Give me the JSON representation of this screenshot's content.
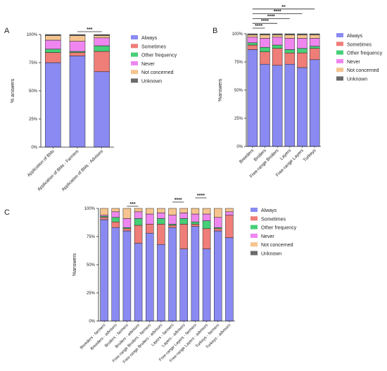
{
  "colors": {
    "Always": "#8a8af2",
    "Sometimes": "#ef7d78",
    "Other frequency": "#46cf77",
    "Never": "#ef86ef",
    "Not concerned": "#f5c48f",
    "Unknown": "#6b6b6b"
  },
  "chart_data": [
    {
      "panel": "A",
      "type": "bar",
      "stacked": true,
      "ylabel": "% answers",
      "yticks": [
        "0%",
        "25%",
        "50%",
        "75%",
        "100%"
      ],
      "ylim": [
        0,
        100
      ],
      "categories": [
        "Application of BMs",
        "Application of BMs - Farmers",
        "Application of BMs - Advisors"
      ],
      "series": [
        {
          "name": "Always",
          "values": [
            75,
            81,
            67
          ]
        },
        {
          "name": "Sometimes",
          "values": [
            9,
            3,
            18
          ]
        },
        {
          "name": "Other frequency",
          "values": [
            3,
            1,
            5
          ]
        },
        {
          "name": "Never",
          "values": [
            8,
            9,
            7
          ]
        },
        {
          "name": "Not concerned",
          "values": [
            4,
            5,
            2
          ]
        },
        {
          "name": "Unknown",
          "values": [
            1,
            1,
            1
          ]
        }
      ],
      "legend": [
        "Always",
        "Sometimes",
        "Other frequency",
        "Never",
        "Not concerned",
        "Unknown"
      ],
      "significance": [
        {
          "from": 1,
          "to": 2,
          "label": "***"
        }
      ]
    },
    {
      "panel": "B",
      "type": "bar",
      "stacked": true,
      "ylabel": "%answers",
      "yticks": [
        "0%",
        "25%",
        "50%",
        "75%",
        "100%"
      ],
      "ylim": [
        0,
        100
      ],
      "categories": [
        "Breeders",
        "Broilers",
        "Free-range Broilers",
        "Layers",
        "Free-range Layers",
        "Turkeys"
      ],
      "series": [
        {
          "name": "Always",
          "values": [
            86,
            73,
            72,
            73,
            70,
            77
          ]
        },
        {
          "name": "Sometimes",
          "values": [
            4,
            11,
            15,
            10,
            13,
            10
          ]
        },
        {
          "name": "Other frequency",
          "values": [
            2,
            4,
            3,
            3,
            4,
            2
          ]
        },
        {
          "name": "Never",
          "values": [
            5,
            8,
            7,
            10,
            9,
            7
          ]
        },
        {
          "name": "Not concerned",
          "values": [
            2,
            3,
            2,
            3,
            3,
            3
          ]
        },
        {
          "name": "Unknown",
          "values": [
            1,
            1,
            1,
            1,
            1,
            1
          ]
        }
      ],
      "legend": [
        "Always",
        "Sometimes",
        "Other frequency",
        "Never",
        "Not concerned",
        "Unknown"
      ],
      "significance": [
        {
          "from": 0,
          "to": 1,
          "label": "****"
        },
        {
          "from": 0,
          "to": 2,
          "label": "****"
        },
        {
          "from": 0,
          "to": 3,
          "label": "****"
        },
        {
          "from": 0,
          "to": 4,
          "label": "****"
        },
        {
          "from": 0,
          "to": 5,
          "label": "**"
        }
      ]
    },
    {
      "panel": "C",
      "type": "bar",
      "stacked": true,
      "ylabel": "%answers",
      "yticks": [
        "0%",
        "25%",
        "50%",
        "75%",
        "100%"
      ],
      "ylim": [
        0,
        100
      ],
      "categories": [
        "Breeders - farmers",
        "Breeders - advisors",
        "Broilers - farmers",
        "Broilers - advisors",
        "Free-range Broilers - farmers",
        "Free-range Broilers - advisors",
        "Layers - farmers",
        "Layers - advisors",
        "Free-range Layers - farmers",
        "Free-range Layers - advisors",
        "Turkeys - farmers",
        "Turkeys - advisors"
      ],
      "series": [
        {
          "name": "Always",
          "values": [
            90,
            83,
            80,
            69,
            78,
            68,
            83,
            64,
            84,
            64,
            80,
            74
          ]
        },
        {
          "name": "Sometimes",
          "values": [
            2,
            5,
            2,
            16,
            8,
            18,
            2,
            22,
            2,
            18,
            2,
            20
          ]
        },
        {
          "name": "Other frequency",
          "values": [
            1,
            4,
            1,
            6,
            0,
            5,
            1,
            5,
            2,
            7,
            1,
            0
          ]
        },
        {
          "name": "Never",
          "values": [
            1,
            5,
            8,
            6,
            9,
            5,
            8,
            5,
            7,
            6,
            9,
            3
          ]
        },
        {
          "name": "Not concerned",
          "values": [
            6,
            3,
            9,
            3,
            5,
            4,
            6,
            4,
            5,
            5,
            8,
            3
          ]
        },
        {
          "name": "Unknown",
          "values": [
            0,
            0,
            0,
            0,
            0,
            0,
            0,
            0,
            0,
            0,
            0,
            0
          ]
        }
      ],
      "legend": [
        "Always",
        "Sometimes",
        "Other frequency",
        "Never",
        "Not concerned",
        "Unknown"
      ],
      "significance": [
        {
          "from": 2,
          "to": 3,
          "label": "***"
        },
        {
          "from": 6,
          "to": 7,
          "label": "****"
        },
        {
          "from": 8,
          "to": 9,
          "label": "****"
        }
      ]
    }
  ]
}
